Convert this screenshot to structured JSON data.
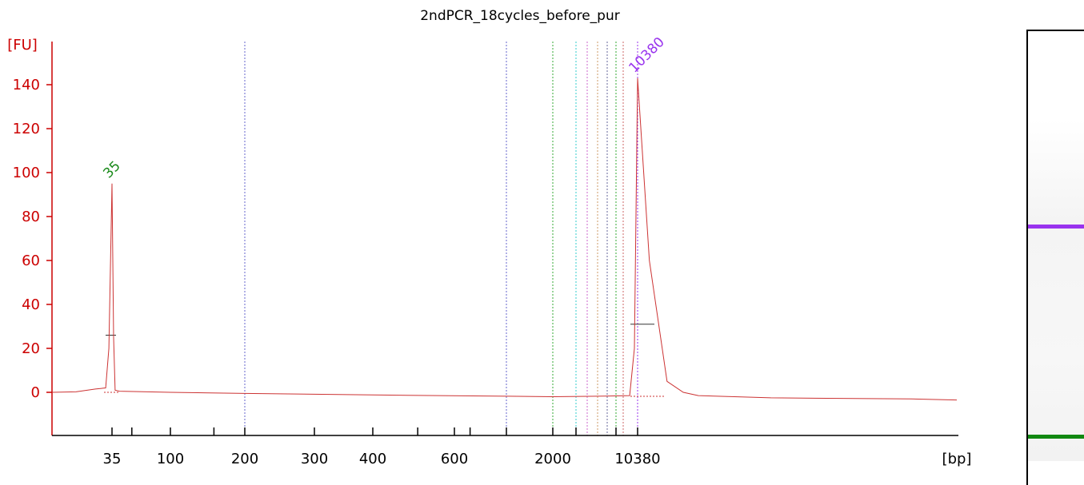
{
  "chart_data": {
    "type": "line",
    "title": "2ndPCR_18cycles_before_pur",
    "ylabel": "[FU]",
    "xlabel": "[bp]",
    "yticks": [
      0,
      20,
      40,
      60,
      80,
      100,
      120,
      140
    ],
    "ylim": [
      -18,
      157
    ],
    "x_tick_labels": [
      "35",
      "100",
      "200",
      "300",
      "400",
      "600",
      "2000",
      "10380"
    ],
    "series": [
      {
        "color": "#cc2222",
        "points": [
          [
            "start",
            0
          ],
          [
            25,
            0.2
          ],
          [
            30,
            1.5
          ],
          [
            33,
            2
          ],
          [
            34,
            20
          ],
          [
            35,
            95
          ],
          [
            36,
            25
          ],
          [
            37,
            1
          ],
          [
            40,
            0.5
          ],
          [
            100,
            0
          ],
          [
            200,
            -0.5
          ],
          [
            400,
            -1.2
          ],
          [
            1000,
            -1.8
          ],
          [
            2000,
            -2
          ],
          [
            5000,
            -1.8
          ],
          [
            9000,
            -1.5
          ],
          [
            9800,
            20
          ],
          [
            10380,
            143
          ],
          [
            11000,
            60
          ],
          [
            12000,
            5
          ],
          [
            13000,
            0
          ],
          [
            14000,
            -1.5
          ],
          [
            20000,
            -2.5
          ],
          [
            40000,
            -3
          ],
          [
            "end",
            -3.5
          ]
        ]
      }
    ],
    "peaks": [
      {
        "label": "35",
        "value": 95,
        "color": "#1a8a1a"
      },
      {
        "label": "10380",
        "value": 143,
        "color": "#9933ee"
      }
    ],
    "markers": [
      {
        "x": "200",
        "color": "#6666cc"
      },
      {
        "x": "1000",
        "color": "#6666cc"
      },
      {
        "x": "2000",
        "color": "#33aa33"
      },
      {
        "x": "3000",
        "color": "#33cccc"
      },
      {
        "x": "4000",
        "color": "#cc66cc"
      },
      {
        "x": "5000",
        "color": "#cc9966"
      },
      {
        "x": "6000",
        "color": "#666699"
      },
      {
        "x": "7000",
        "color": "#33aa33"
      },
      {
        "x": "8000",
        "color": "#cc6666"
      },
      {
        "x": "10380",
        "color": "#9933ee"
      }
    ],
    "grid": false,
    "legend": "none"
  },
  "gel": {
    "bands": [
      {
        "label": "10380",
        "color": "#9933ee"
      },
      {
        "label": "35",
        "color": "#118811"
      }
    ]
  }
}
